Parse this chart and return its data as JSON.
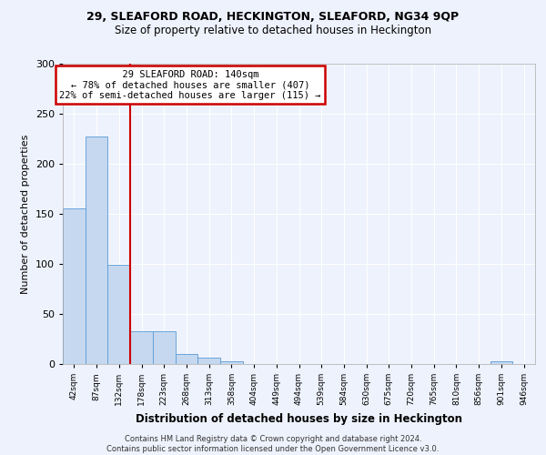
{
  "title_line1": "29, SLEAFORD ROAD, HECKINGTON, SLEAFORD, NG34 9QP",
  "title_line2": "Size of property relative to detached houses in Heckington",
  "xlabel": "Distribution of detached houses by size in Heckington",
  "ylabel": "Number of detached properties",
  "footnote": "Contains HM Land Registry data © Crown copyright and database right 2024.\nContains public sector information licensed under the Open Government Licence v3.0.",
  "bin_labels": [
    "42sqm",
    "87sqm",
    "132sqm",
    "178sqm",
    "223sqm",
    "268sqm",
    "313sqm",
    "358sqm",
    "404sqm",
    "449sqm",
    "494sqm",
    "539sqm",
    "584sqm",
    "630sqm",
    "675sqm",
    "720sqm",
    "765sqm",
    "810sqm",
    "856sqm",
    "901sqm",
    "946sqm"
  ],
  "bar_values": [
    155,
    227,
    99,
    33,
    33,
    10,
    6,
    3,
    0,
    0,
    0,
    0,
    0,
    0,
    0,
    0,
    0,
    0,
    0,
    3,
    0
  ],
  "bar_color": "#c5d8f0",
  "bar_edge_color": "#5b9bd5",
  "vline_x": 2,
  "vline_color": "#cc0000",
  "annotation_text": "  29 SLEAFORD ROAD: 140sqm  \n← 78% of detached houses are smaller (407)\n22% of semi-detached houses are larger (115) →",
  "annotation_box_color": "#ffffff",
  "annotation_box_edge": "#cc0000",
  "ylim": [
    0,
    300
  ],
  "yticks": [
    0,
    50,
    100,
    150,
    200,
    250,
    300
  ],
  "bg_color": "#eef2fc",
  "plot_bg_color": "#eef2fc",
  "grid_color": "#ffffff"
}
